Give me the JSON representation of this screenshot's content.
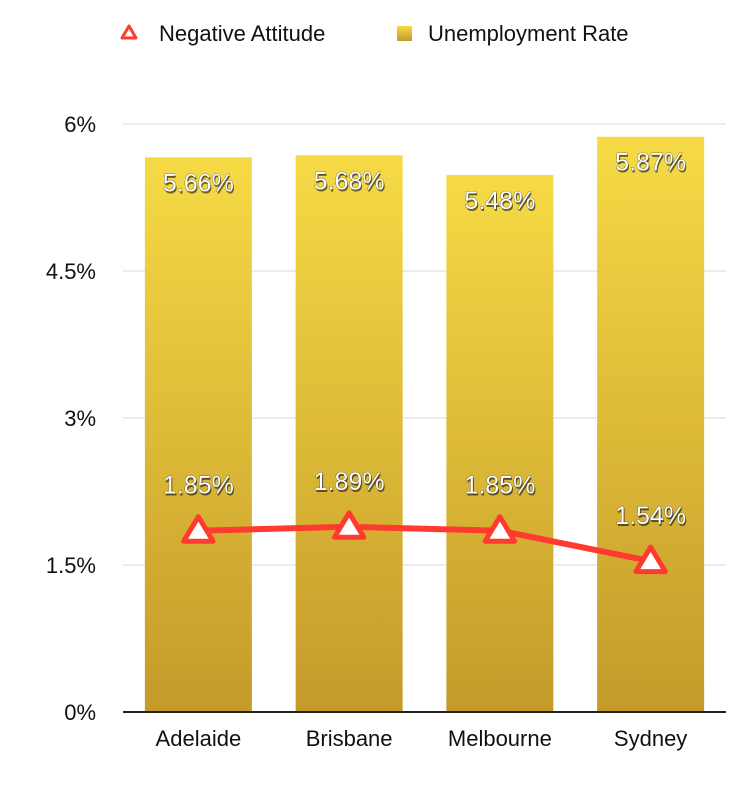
{
  "chart_data": {
    "type": "bar+line",
    "categories": [
      "Adelaide",
      "Brisbane",
      "Melbourne",
      "Sydney"
    ],
    "series": [
      {
        "name": "Unemployment Rate",
        "type": "bar",
        "values": [
          5.66,
          5.68,
          5.48,
          5.87
        ],
        "labels": [
          "5.66%",
          "5.68%",
          "5.48%",
          "5.87%"
        ]
      },
      {
        "name": "Negative Attitude",
        "type": "line",
        "values": [
          1.85,
          1.89,
          1.85,
          1.54
        ],
        "labels": [
          "1.85%",
          "1.89%",
          "1.85%",
          "1.54%"
        ]
      }
    ],
    "ylim": [
      0,
      6
    ],
    "yticks": [
      0,
      1.5,
      3,
      4.5,
      6
    ],
    "ytick_labels": [
      "0%",
      "1.5%",
      "3%",
      "4.5%",
      "6%"
    ],
    "grid": true,
    "legend_position": "top",
    "colors": {
      "bar_top": "#f6da45",
      "bar_bottom": "#c49a2a",
      "line": "#ff3b30",
      "marker_fill": "#ffffff"
    }
  }
}
